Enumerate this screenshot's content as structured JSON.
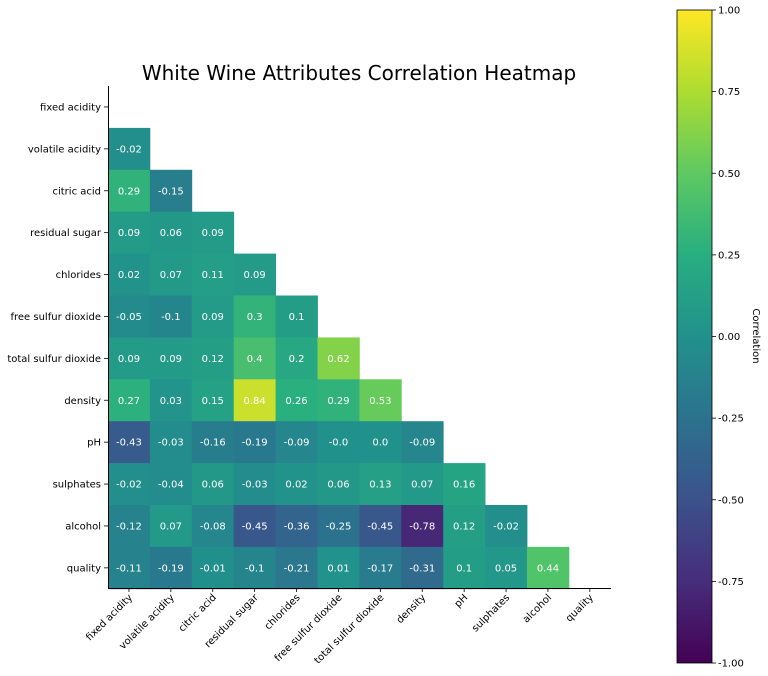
{
  "chart_data": {
    "type": "heatmap",
    "title": "White Wine Attributes Correlation Heatmap",
    "variables": [
      "fixed acidity",
      "volatile acidity",
      "citric acid",
      "residual sugar",
      "chlorides",
      "free sulfur dioxide",
      "total sulfur dioxide",
      "density",
      "pH",
      "sulphates",
      "alcohol",
      "quality"
    ],
    "mask": "upper-triangle-including-diagonal",
    "lower_triangle": [
      [],
      [
        -0.02
      ],
      [
        0.29,
        -0.15
      ],
      [
        0.09,
        0.06,
        0.09
      ],
      [
        0.02,
        0.07,
        0.11,
        0.09
      ],
      [
        -0.05,
        -0.1,
        0.09,
        0.3,
        0.1
      ],
      [
        0.09,
        0.09,
        0.12,
        0.4,
        0.2,
        0.62
      ],
      [
        0.27,
        0.03,
        0.15,
        0.84,
        0.26,
        0.29,
        0.53
      ],
      [
        -0.43,
        -0.03,
        -0.16,
        -0.19,
        -0.09,
        -0.0,
        0.0,
        -0.09
      ],
      [
        -0.02,
        -0.04,
        0.06,
        -0.03,
        0.02,
        0.06,
        0.13,
        0.07,
        0.16
      ],
      [
        -0.12,
        0.07,
        -0.08,
        -0.45,
        -0.36,
        -0.25,
        -0.45,
        -0.78,
        0.12,
        -0.02
      ],
      [
        -0.11,
        -0.19,
        -0.01,
        -0.1,
        -0.21,
        0.01,
        -0.17,
        -0.31,
        0.1,
        0.05,
        0.44
      ]
    ],
    "cell_labels": [
      [],
      [
        "-0.02"
      ],
      [
        "0.29",
        "-0.15"
      ],
      [
        "0.09",
        "0.06",
        "0.09"
      ],
      [
        "0.02",
        "0.07",
        "0.11",
        "0.09"
      ],
      [
        "-0.05",
        "-0.1",
        "0.09",
        "0.3",
        "0.1"
      ],
      [
        "0.09",
        "0.09",
        "0.12",
        "0.4",
        "0.2",
        "0.62"
      ],
      [
        "0.27",
        "0.03",
        "0.15",
        "0.84",
        "0.26",
        "0.29",
        "0.53"
      ],
      [
        "-0.43",
        "-0.03",
        "-0.16",
        "-0.19",
        "-0.09",
        "-0.0",
        "0.0",
        "-0.09"
      ],
      [
        "-0.02",
        "-0.04",
        "0.06",
        "-0.03",
        "0.02",
        "0.06",
        "0.13",
        "0.07",
        "0.16"
      ],
      [
        "-0.12",
        "0.07",
        "-0.08",
        "-0.45",
        "-0.36",
        "-0.25",
        "-0.45",
        "-0.78",
        "0.12",
        "-0.02"
      ],
      [
        "-0.11",
        "-0.19",
        "-0.01",
        "-0.1",
        "-0.21",
        "0.01",
        "-0.17",
        "-0.31",
        "0.1",
        "0.05",
        "0.44"
      ]
    ],
    "colormap": "viridis",
    "vmin": -1.0,
    "vmax": 1.0,
    "colorbar": {
      "label": "Correlation",
      "ticks": [
        "1.00",
        "0.75",
        "0.50",
        "0.25",
        "0.00",
        "-0.25",
        "-0.50",
        "-0.75",
        "-1.00"
      ],
      "tick_values": [
        1.0,
        0.75,
        0.5,
        0.25,
        0.0,
        -0.25,
        -0.5,
        -0.75,
        -1.0
      ]
    },
    "grid": false
  }
}
